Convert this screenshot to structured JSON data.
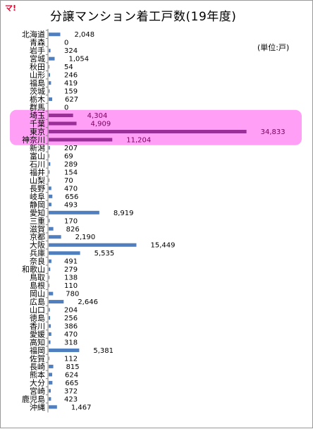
{
  "logo": {
    "text": "マ!"
  },
  "chart_data": {
    "type": "bar",
    "orientation": "horizontal",
    "title": "分譲マンション着工戸数(19年度)",
    "unit_label": "(単位:戸)",
    "colors": {
      "bar": "#4f7fbf",
      "highlight_bar": "#9a2f9a",
      "highlight_band": "#ff9ff5"
    },
    "categories": [
      "北海道",
      "青森",
      "岩手",
      "宮城",
      "秋田",
      "山形",
      "福島",
      "茨城",
      "栃木",
      "群馬",
      "埼玉",
      "千葉",
      "東京",
      "神奈川",
      "新潟",
      "富山",
      "石川",
      "福井",
      "山梨",
      "長野",
      "岐阜",
      "静岡",
      "愛知",
      "三重",
      "滋賀",
      "京都",
      "大阪",
      "兵庫",
      "奈良",
      "和歌山",
      "鳥取",
      "島根",
      "岡山",
      "広島",
      "山口",
      "徳島",
      "香川",
      "愛媛",
      "高知",
      "福岡",
      "佐賀",
      "長崎",
      "熊本",
      "大分",
      "宮崎",
      "鹿児島",
      "沖縄"
    ],
    "values": [
      2048,
      0,
      324,
      1054,
      54,
      246,
      419,
      159,
      627,
      0,
      4304,
      4909,
      34833,
      11204,
      207,
      69,
      289,
      154,
      70,
      470,
      656,
      493,
      8919,
      170,
      826,
      2190,
      15449,
      5535,
      491,
      279,
      138,
      110,
      780,
      2646,
      204,
      256,
      386,
      470,
      318,
      5381,
      112,
      815,
      624,
      665,
      372,
      423,
      1467
    ],
    "value_labels": [
      "2,048",
      "0",
      "324",
      "1,054",
      "54",
      "246",
      "419",
      "159",
      "627",
      "0",
      "4,304",
      "4,909",
      "34,833",
      "11,204",
      "207",
      "69",
      "289",
      "154",
      "70",
      "470",
      "656",
      "493",
      "8,919",
      "170",
      "826",
      "2,190",
      "15,449",
      "5,535",
      "491",
      "279",
      "138",
      "110",
      "780",
      "2,646",
      "204",
      "256",
      "386",
      "470",
      "318",
      "5,381",
      "112",
      "815",
      "624",
      "665",
      "372",
      "423",
      "1,467"
    ],
    "highlighted": [
      "埼玉",
      "千葉",
      "東京",
      "神奈川"
    ],
    "xlim": [
      0,
      35000
    ]
  }
}
